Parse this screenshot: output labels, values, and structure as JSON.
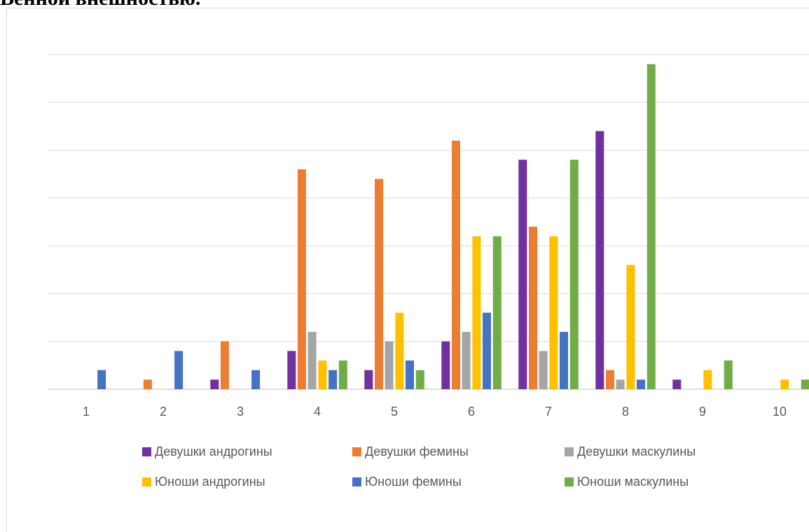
{
  "heading": "Bенной внешностью.",
  "chart_data": {
    "type": "bar",
    "categories": [
      "1",
      "2",
      "3",
      "4",
      "5",
      "6",
      "7",
      "8",
      "9",
      "10"
    ],
    "ylim": [
      0,
      35
    ],
    "grid": true,
    "legend_position": "bottom",
    "series": [
      {
        "name": "Девушки андрогины",
        "color": "#7030a0",
        "values": [
          0,
          0,
          1,
          4,
          2,
          5,
          24,
          27,
          1,
          0
        ]
      },
      {
        "name": "Девушки фемины",
        "color": "#ed7d31",
        "values": [
          0,
          1,
          5,
          23,
          22,
          26,
          17,
          2,
          0,
          0
        ]
      },
      {
        "name": "Девушки маскулины",
        "color": "#a5a5a5",
        "values": [
          0,
          0,
          0,
          6,
          5,
          6,
          4,
          1,
          0,
          0
        ]
      },
      {
        "name": "Юноши андрогины",
        "color": "#ffc000",
        "values": [
          0,
          0,
          0,
          3,
          8,
          16,
          16,
          13,
          2,
          1
        ]
      },
      {
        "name": "Юноши фемины",
        "color": "#4472c4",
        "values": [
          2,
          4,
          2,
          2,
          3,
          8,
          6,
          1,
          0,
          0
        ]
      },
      {
        "name": "Юноши маскулины",
        "color": "#70ad47",
        "values": [
          0,
          0,
          0,
          3,
          2,
          16,
          24,
          34,
          3,
          1
        ]
      }
    ]
  }
}
